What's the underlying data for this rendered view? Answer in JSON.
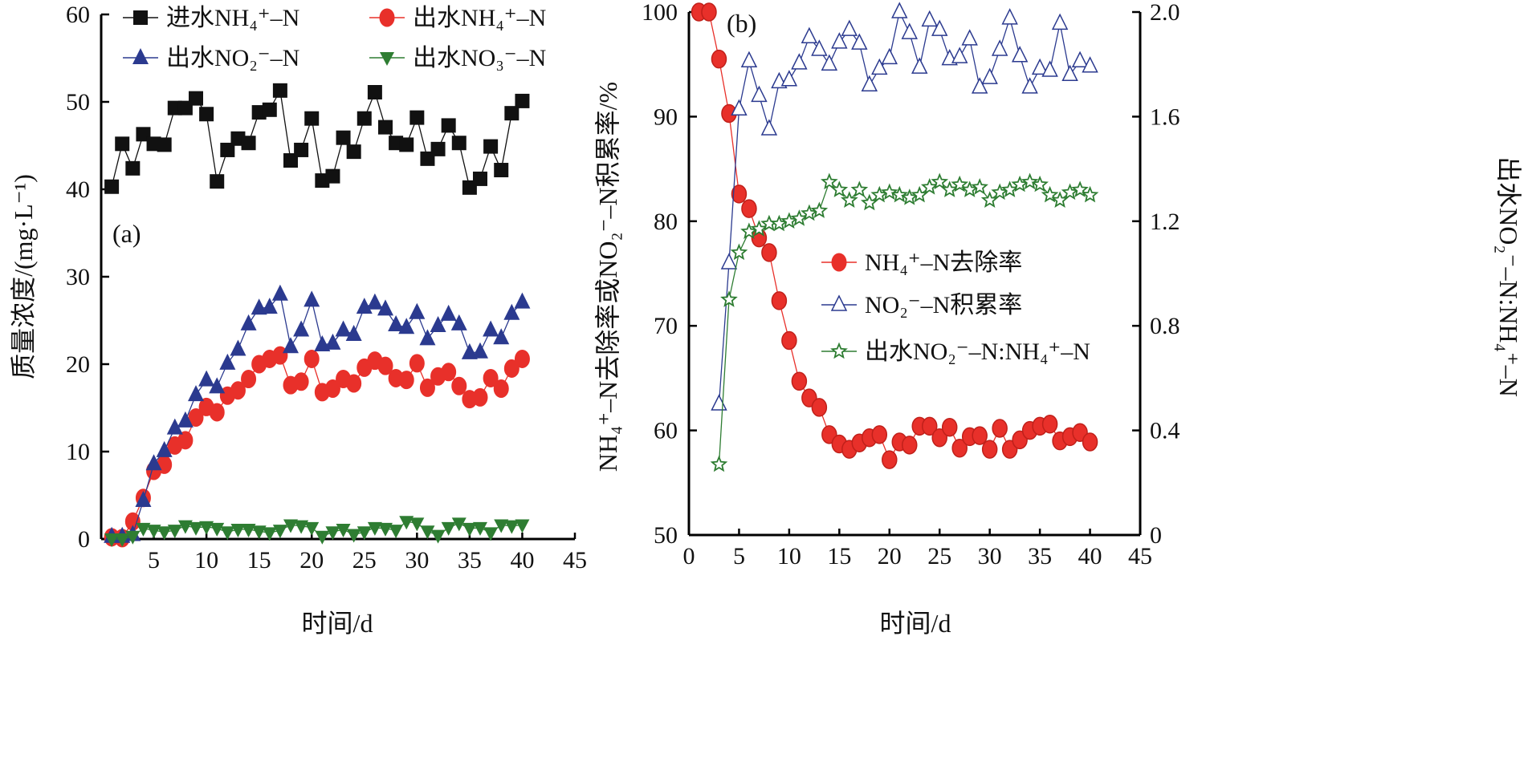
{
  "chart_data": [
    {
      "type": "line",
      "panel_label": "(a)",
      "xlabel": "时间/d",
      "ylabel": "质量浓度/(mg·L⁻¹)",
      "xlim": [
        0,
        45
      ],
      "ylim": [
        0,
        60
      ],
      "xticks": [
        5,
        10,
        15,
        20,
        25,
        30,
        35,
        40,
        45
      ],
      "yticks": [
        0,
        10,
        20,
        30,
        40,
        50,
        60
      ],
      "x": [
        1,
        2,
        3,
        4,
        5,
        6,
        7,
        8,
        9,
        10,
        11,
        12,
        13,
        14,
        15,
        16,
        17,
        18,
        19,
        20,
        21,
        22,
        23,
        24,
        25,
        26,
        27,
        28,
        29,
        30,
        31,
        32,
        33,
        34,
        35,
        36,
        37,
        38,
        39,
        40
      ],
      "legend_placement": "top-left",
      "series": [
        {
          "name": "进水NH₄⁺–N",
          "color": "#111111",
          "marker": "square",
          "values": [
            40.3,
            45.2,
            42.4,
            46.3,
            45.2,
            45.1,
            49.3,
            49.3,
            50.4,
            48.6,
            40.9,
            44.5,
            45.8,
            45.3,
            48.8,
            49.1,
            51.3,
            43.3,
            44.5,
            48.1,
            41.0,
            41.5,
            45.9,
            44.3,
            48.1,
            51.1,
            47.1,
            45.3,
            45.1,
            48.2,
            43.5,
            44.6,
            47.3,
            45.3,
            40.2,
            41.2,
            44.9,
            42.2,
            48.7,
            50.1
          ]
        },
        {
          "name": "出水NH₄⁺–N",
          "color": "#e8302a",
          "marker": "circle",
          "values": [
            0.2,
            0.1,
            2.0,
            4.7,
            7.8,
            8.5,
            10.7,
            11.3,
            13.9,
            15.1,
            14.5,
            16.4,
            17.0,
            18.3,
            20.0,
            20.6,
            21.0,
            17.6,
            18.0,
            20.6,
            16.8,
            17.2,
            18.3,
            17.8,
            19.6,
            20.4,
            19.8,
            18.4,
            18.2,
            20.1,
            17.3,
            18.6,
            19.1,
            17.5,
            16.0,
            16.2,
            18.4,
            17.2,
            19.5,
            20.6
          ]
        },
        {
          "name": "出水NO₂⁻–N",
          "color": "#2b3a8f",
          "marker": "triangle-up",
          "values": [
            0.3,
            0.3,
            0.5,
            4.4,
            8.6,
            10.1,
            12.7,
            13.5,
            16.5,
            18.2,
            17.4,
            20.1,
            21.7,
            24.6,
            26.4,
            26.5,
            28.0,
            22.0,
            23.9,
            27.3,
            22.2,
            22.4,
            23.9,
            23.4,
            26.5,
            27.0,
            26.3,
            24.5,
            24.2,
            25.9,
            22.9,
            24.4,
            25.7,
            24.6,
            21.3,
            21.4,
            23.9,
            23.0,
            25.8,
            27.1
          ]
        },
        {
          "name": "出水NO₃⁻–N",
          "color": "#2e7d32",
          "marker": "triangle-down",
          "values": [
            0.0,
            0.0,
            0.3,
            1.2,
            1.0,
            0.8,
            1.0,
            1.5,
            1.3,
            1.4,
            1.2,
            0.8,
            1.1,
            1.1,
            0.9,
            0.7,
            1.0,
            1.6,
            1.5,
            1.3,
            0.3,
            0.8,
            1.1,
            0.5,
            0.8,
            1.3,
            1.2,
            1.0,
            2.0,
            1.8,
            0.9,
            0.4,
            1.3,
            1.8,
            1.2,
            1.3,
            0.7,
            1.6,
            1.5,
            1.6
          ]
        }
      ]
    },
    {
      "type": "line",
      "panel_label": "(b)",
      "xlabel": "时间/d",
      "ylabel": "NH₄⁺–N去除率或NO₂⁻–N积累率/%",
      "y2label": "出水NO₂⁻–N:NH₄⁺–N",
      "xlim": [
        0,
        45
      ],
      "ylim": [
        50,
        100
      ],
      "y2lim": [
        0,
        2.0
      ],
      "xticks": [
        0,
        5,
        10,
        15,
        20,
        25,
        30,
        35,
        40,
        45
      ],
      "yticks": [
        50,
        60,
        70,
        80,
        90,
        100
      ],
      "y2ticks": [
        "0",
        "0.4",
        "0.8",
        "1.2",
        "1.6",
        "2.0"
      ],
      "legend_placement": "center-right",
      "series": [
        {
          "name": "NH₄⁺–N去除率",
          "color": "#e8302a",
          "marker": "circle",
          "axis": "left",
          "x": [
            1,
            2,
            3,
            4,
            5,
            6,
            7,
            8,
            9,
            10,
            11,
            12,
            13,
            14,
            15,
            16,
            17,
            18,
            19,
            20,
            21,
            22,
            23,
            24,
            25,
            26,
            27,
            28,
            29,
            30,
            31,
            32,
            33,
            34,
            35,
            36,
            37,
            38,
            39,
            40
          ],
          "values": [
            100,
            100,
            95.5,
            90.3,
            82.6,
            81.2,
            78.4,
            77.0,
            72.4,
            68.6,
            64.7,
            63.1,
            62.2,
            59.6,
            58.7,
            58.2,
            58.8,
            59.3,
            59.6,
            57.2,
            58.9,
            58.6,
            60.4,
            60.4,
            59.3,
            60.3,
            58.3,
            59.4,
            59.5,
            58.2,
            60.2,
            58.2,
            59.1,
            60.0,
            60.4,
            60.6,
            59.0,
            59.4,
            59.8,
            58.9
          ]
        },
        {
          "name": "NO₂⁻–N积累率",
          "color": "#2b3a8f",
          "marker": "triangle-up-open",
          "axis": "left",
          "x": [
            3,
            4,
            5,
            6,
            7,
            8,
            9,
            10,
            11,
            12,
            13,
            14,
            15,
            16,
            17,
            18,
            19,
            20,
            21,
            22,
            23,
            24,
            25,
            26,
            27,
            28,
            29,
            30,
            31,
            32,
            33,
            34,
            35,
            36,
            37,
            38,
            39,
            40
          ],
          "values": [
            62.5,
            76.0,
            90.7,
            95.3,
            92.0,
            88.8,
            93.3,
            93.5,
            95.1,
            97.6,
            96.4,
            95.0,
            97.1,
            98.3,
            97.0,
            93.0,
            94.6,
            95.6,
            100,
            98.0,
            94.7,
            99.2,
            98.3,
            95.5,
            95.7,
            97.4,
            92.8,
            93.7,
            96.4,
            99.4,
            95.8,
            92.8,
            94.6,
            94.4,
            98.9,
            94.0,
            95.3,
            94.8
          ]
        },
        {
          "name": "出水NO₂⁻–N:NH₄⁺–N",
          "color": "#2e7d32",
          "marker": "star",
          "axis": "right",
          "x": [
            3,
            4,
            5,
            6,
            7,
            8,
            9,
            10,
            11,
            12,
            13,
            14,
            15,
            16,
            17,
            18,
            19,
            20,
            21,
            22,
            23,
            24,
            25,
            26,
            27,
            28,
            29,
            30,
            31,
            32,
            33,
            34,
            35,
            36,
            37,
            38,
            39,
            40
          ],
          "values": [
            0.27,
            0.9,
            1.08,
            1.16,
            1.17,
            1.19,
            1.19,
            1.2,
            1.21,
            1.23,
            1.24,
            1.35,
            1.32,
            1.28,
            1.32,
            1.27,
            1.3,
            1.31,
            1.3,
            1.29,
            1.3,
            1.33,
            1.35,
            1.32,
            1.34,
            1.32,
            1.33,
            1.28,
            1.31,
            1.32,
            1.34,
            1.35,
            1.34,
            1.3,
            1.28,
            1.31,
            1.32,
            1.3
          ]
        }
      ]
    }
  ]
}
